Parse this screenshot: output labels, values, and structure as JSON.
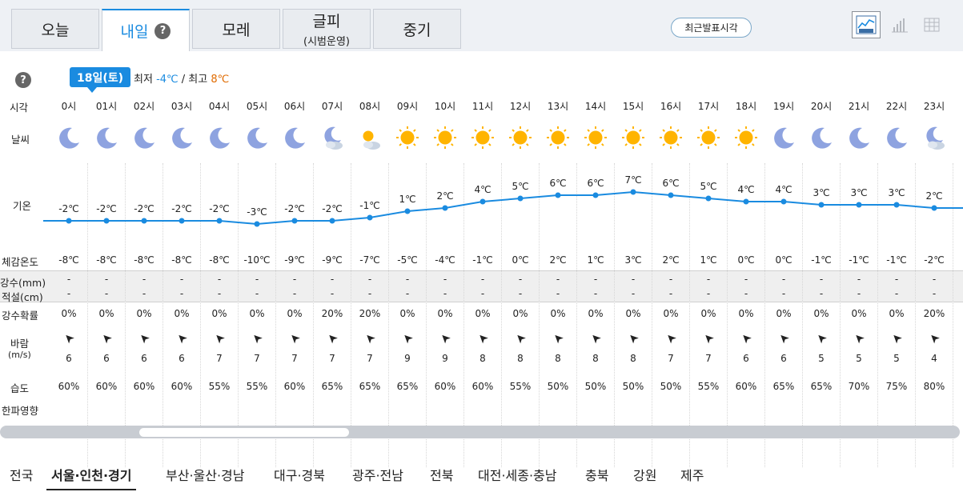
{
  "tabs": [
    {
      "label": "오늘",
      "sub": ""
    },
    {
      "label": "내일",
      "sub": ""
    },
    {
      "label": "모레",
      "sub": ""
    },
    {
      "label": "글피",
      "sub": "(시범운영)"
    },
    {
      "label": "중기",
      "sub": ""
    }
  ],
  "help_glyph": "?",
  "latest_label": "최근발표시각",
  "date_badge": "18일(토)",
  "min_label": "최저",
  "min_value": "-4℃",
  "separator": "/",
  "max_label": "최고",
  "max_value": "8℃",
  "labels": {
    "time": "시각",
    "weather": "날씨",
    "temp": "기온",
    "feels": "체감온도",
    "precip": "강수(mm)",
    "snow": "적설(cm)",
    "prob": "강수확률",
    "wind": "바람",
    "wind_unit": "(m/s)",
    "humidity": "습도",
    "cold": "한파영향"
  },
  "hours": [
    "0시",
    "01시",
    "02시",
    "03시",
    "04시",
    "05시",
    "06시",
    "07시",
    "08시",
    "09시",
    "10시",
    "11시",
    "12시",
    "13시",
    "14시",
    "15시",
    "16시",
    "17시",
    "18시",
    "19시",
    "20시",
    "21시",
    "22시",
    "23시"
  ],
  "weather_icons": [
    "moon-icon",
    "moon-icon",
    "moon-icon",
    "moon-icon",
    "moon-icon",
    "moon-icon",
    "moon-icon",
    "moon-cloud-icon",
    "sun-cloud-icon",
    "sun-icon",
    "sun-icon",
    "sun-icon",
    "sun-icon",
    "sun-icon",
    "sun-icon",
    "sun-icon",
    "sun-icon",
    "sun-icon",
    "sun-icon",
    "moon-icon",
    "moon-icon",
    "moon-icon",
    "moon-icon",
    "moon-cloud-icon"
  ],
  "temps": [
    "-2℃",
    "-2℃",
    "-2℃",
    "-2℃",
    "-2℃",
    "-3℃",
    "-2℃",
    "-2℃",
    "-1℃",
    "1℃",
    "2℃",
    "4℃",
    "5℃",
    "6℃",
    "6℃",
    "7℃",
    "6℃",
    "5℃",
    "4℃",
    "4℃",
    "3℃",
    "3℃",
    "3℃",
    "2℃"
  ],
  "temp_values": [
    -2,
    -2,
    -2,
    -2,
    -2,
    -3,
    -2,
    -2,
    -1,
    1,
    2,
    4,
    5,
    6,
    6,
    7,
    6,
    5,
    4,
    4,
    3,
    3,
    3,
    2
  ],
  "feels": [
    "-8℃",
    "-8℃",
    "-8℃",
    "-8℃",
    "-8℃",
    "-10℃",
    "-9℃",
    "-9℃",
    "-7℃",
    "-5℃",
    "-4℃",
    "-1℃",
    "0℃",
    "2℃",
    "1℃",
    "3℃",
    "2℃",
    "1℃",
    "0℃",
    "0℃",
    "-1℃",
    "-1℃",
    "-1℃",
    "-2℃"
  ],
  "precip": "-",
  "snow": "-",
  "prob": [
    "0%",
    "0%",
    "0%",
    "0%",
    "0%",
    "0%",
    "0%",
    "20%",
    "20%",
    "0%",
    "0%",
    "0%",
    "0%",
    "0%",
    "0%",
    "0%",
    "0%",
    "0%",
    "0%",
    "0%",
    "0%",
    "0%",
    "0%",
    "20%"
  ],
  "wind_arrow": "➤",
  "wind": [
    "6",
    "6",
    "6",
    "6",
    "7",
    "7",
    "7",
    "7",
    "7",
    "9",
    "9",
    "8",
    "8",
    "8",
    "8",
    "8",
    "7",
    "7",
    "6",
    "6",
    "5",
    "5",
    "5",
    "4"
  ],
  "humidity": [
    "60%",
    "60%",
    "60%",
    "60%",
    "55%",
    "55%",
    "60%",
    "65%",
    "65%",
    "65%",
    "60%",
    "60%",
    "55%",
    "50%",
    "50%",
    "50%",
    "50%",
    "55%",
    "60%",
    "65%",
    "65%",
    "70%",
    "75%",
    "80%"
  ],
  "regions": [
    "전국",
    "서울·인천·경기",
    "부산·울산·경남",
    "대구·경북",
    "광주·전남",
    "전북",
    "대전·세종·충남",
    "충북",
    "강원",
    "제주"
  ],
  "active_region": 1,
  "colors": {
    "accent": "#1a8be0",
    "max": "#e06b00",
    "sun": "#ffb400",
    "moon": "#7b8fd6"
  }
}
